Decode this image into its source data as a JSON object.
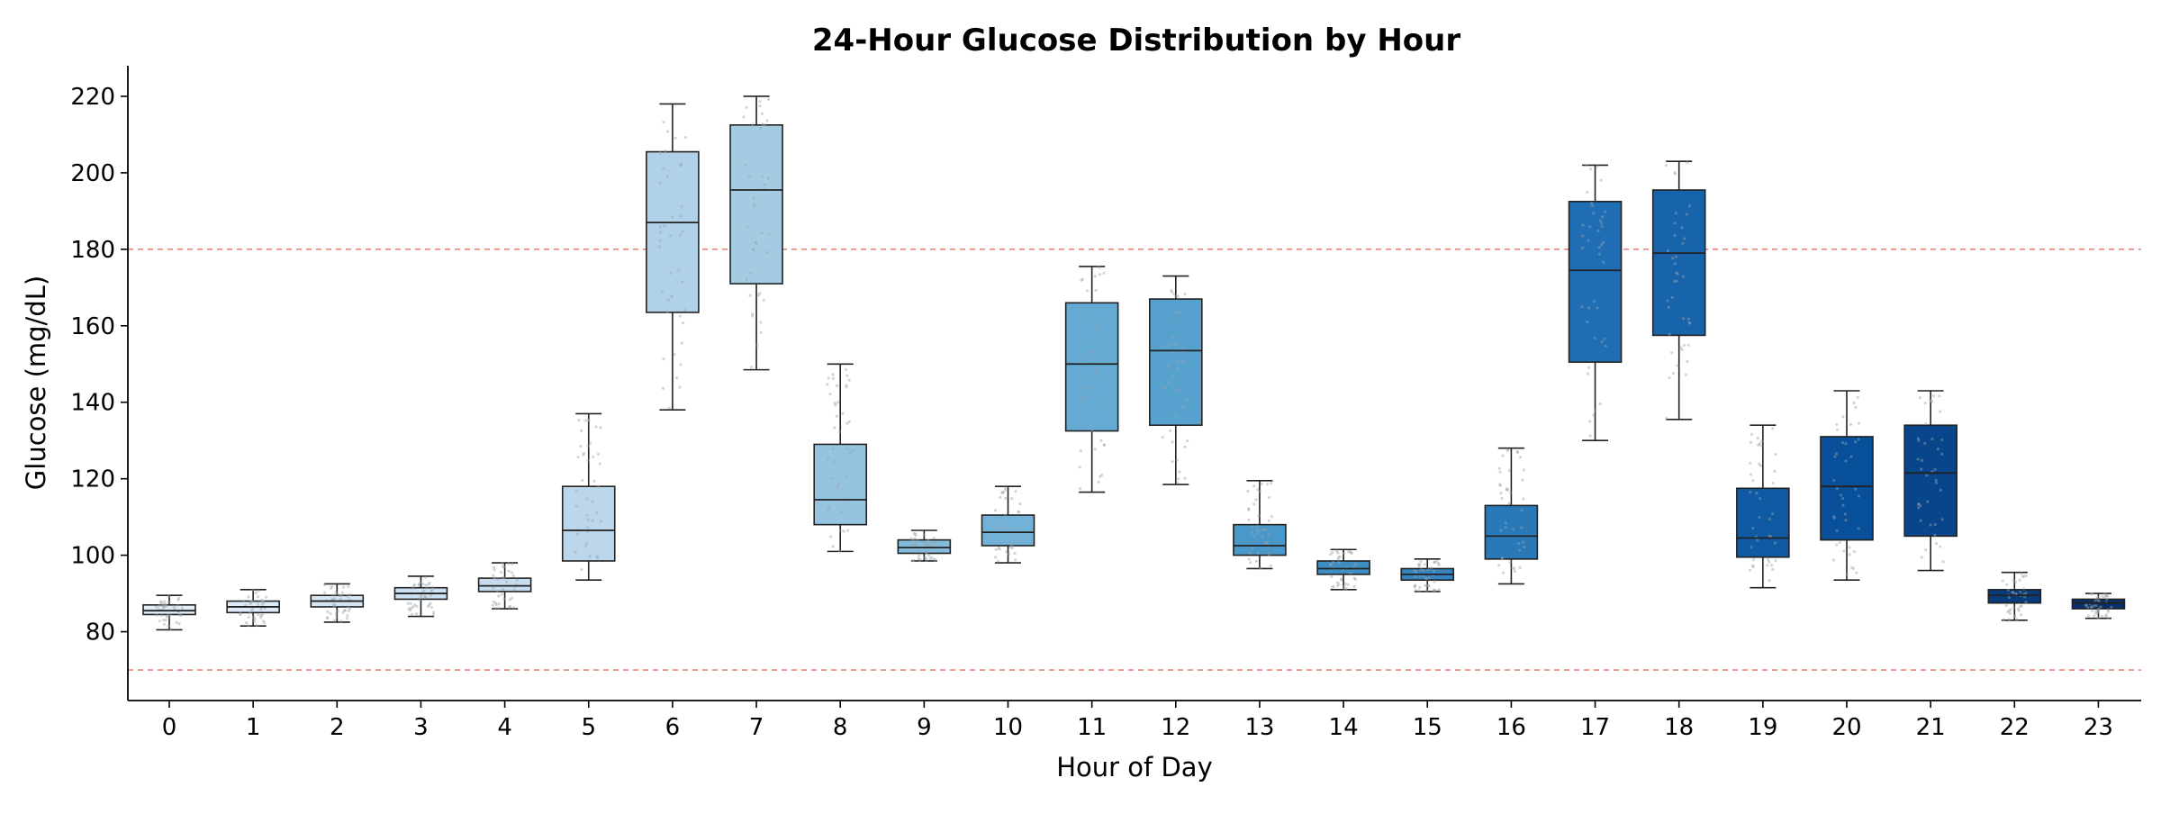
{
  "chart_data": {
    "type": "box",
    "title": "24-Hour Glucose Distribution by Hour",
    "xlabel": "Hour of Day",
    "ylabel": "Glucose (mg/dL)",
    "ylim": [
      62,
      228
    ],
    "yticks": [
      80,
      100,
      120,
      140,
      160,
      180,
      200,
      220
    ],
    "reference_lines": [
      180,
      70
    ],
    "reference_line_color": "#e8867c",
    "grid": false,
    "categories": [
      "0",
      "1",
      "2",
      "3",
      "4",
      "5",
      "6",
      "7",
      "8",
      "9",
      "10",
      "11",
      "12",
      "13",
      "14",
      "15",
      "16",
      "17",
      "18",
      "19",
      "20",
      "21",
      "22",
      "23"
    ],
    "boxes": [
      {
        "whislo": 80.5,
        "q1": 84.5,
        "med": 85.5,
        "q3": 87.0,
        "whishi": 89.5
      },
      {
        "whislo": 81.5,
        "q1": 85.0,
        "med": 86.5,
        "q3": 88.0,
        "whishi": 91.0
      },
      {
        "whislo": 82.5,
        "q1": 86.5,
        "med": 88.0,
        "q3": 89.5,
        "whishi": 92.5
      },
      {
        "whislo": 84.0,
        "q1": 88.5,
        "med": 90.0,
        "q3": 91.5,
        "whishi": 94.5
      },
      {
        "whislo": 86.0,
        "q1": 90.5,
        "med": 92.0,
        "q3": 94.0,
        "whishi": 98.0
      },
      {
        "whislo": 93.5,
        "q1": 98.5,
        "med": 106.5,
        "q3": 118.0,
        "whishi": 137.0
      },
      {
        "whislo": 138.0,
        "q1": 163.5,
        "med": 187.0,
        "q3": 205.5,
        "whishi": 218.0
      },
      {
        "whislo": 148.5,
        "q1": 171.0,
        "med": 195.5,
        "q3": 212.5,
        "whishi": 220.0
      },
      {
        "whislo": 101.0,
        "q1": 108.0,
        "med": 114.5,
        "q3": 129.0,
        "whishi": 150.0
      },
      {
        "whislo": 98.5,
        "q1": 100.5,
        "med": 102.0,
        "q3": 104.0,
        "whishi": 106.5
      },
      {
        "whislo": 98.0,
        "q1": 102.5,
        "med": 106.0,
        "q3": 110.5,
        "whishi": 118.0
      },
      {
        "whislo": 116.5,
        "q1": 132.5,
        "med": 150.0,
        "q3": 166.0,
        "whishi": 175.5
      },
      {
        "whislo": 118.5,
        "q1": 134.0,
        "med": 153.5,
        "q3": 167.0,
        "whishi": 173.0
      },
      {
        "whislo": 96.5,
        "q1": 100.0,
        "med": 102.5,
        "q3": 108.0,
        "whishi": 119.5
      },
      {
        "whislo": 91.0,
        "q1": 95.0,
        "med": 96.5,
        "q3": 98.5,
        "whishi": 101.5
      },
      {
        "whislo": 90.5,
        "q1": 93.5,
        "med": 95.0,
        "q3": 96.5,
        "whishi": 99.0
      },
      {
        "whislo": 92.5,
        "q1": 99.0,
        "med": 105.0,
        "q3": 113.0,
        "whishi": 128.0
      },
      {
        "whislo": 130.0,
        "q1": 150.5,
        "med": 174.5,
        "q3": 192.5,
        "whishi": 202.0
      },
      {
        "whislo": 135.5,
        "q1": 157.5,
        "med": 179.0,
        "q3": 195.5,
        "whishi": 203.0
      },
      {
        "whislo": 91.5,
        "q1": 99.5,
        "med": 104.5,
        "q3": 117.5,
        "whishi": 134.0
      },
      {
        "whislo": 93.5,
        "q1": 104.0,
        "med": 118.0,
        "q3": 131.0,
        "whishi": 143.0
      },
      {
        "whislo": 96.0,
        "q1": 105.0,
        "med": 121.5,
        "q3": 134.0,
        "whishi": 143.0
      },
      {
        "whislo": 83.0,
        "q1": 87.5,
        "med": 89.5,
        "q3": 91.0,
        "whishi": 95.5
      },
      {
        "whislo": 83.5,
        "q1": 86.0,
        "med": 87.5,
        "q3": 88.5,
        "whishi": 90.0
      }
    ],
    "box_colors": [
      "#f0f5fb",
      "#08306b"
    ],
    "point_color": "#9aa4ae"
  }
}
